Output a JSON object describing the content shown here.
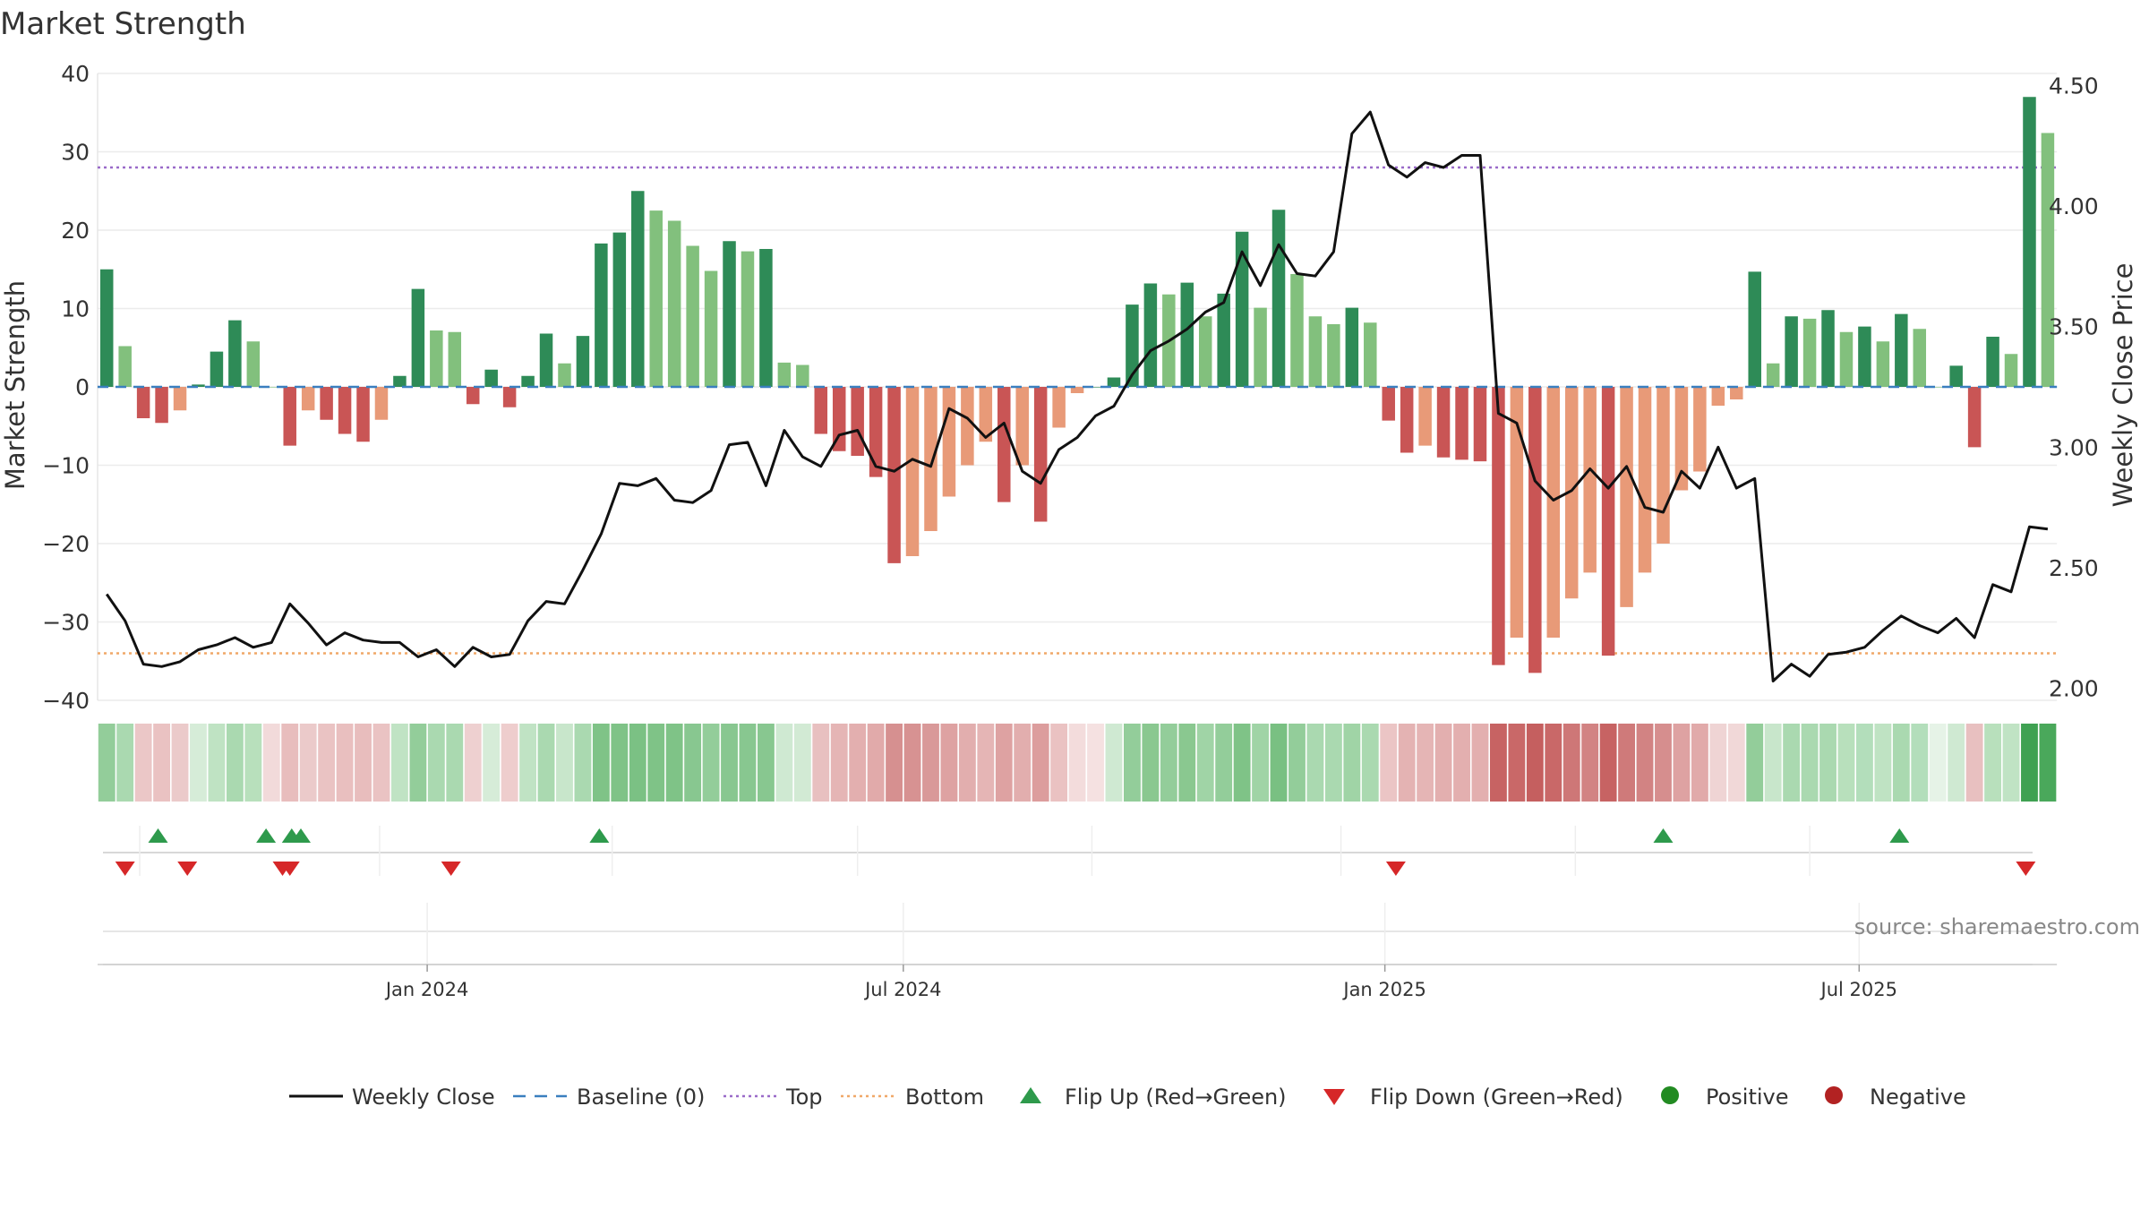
{
  "chart_data": {
    "type": "bar",
    "title": "Market Strength",
    "ylabel_left": "Market Strength",
    "ylabel_right": "Weekly Close Price",
    "ylim_left": [
      -40,
      40
    ],
    "ylim_right": [
      1.95,
      4.55
    ],
    "left_ticks": [
      40,
      30,
      20,
      10,
      0,
      -10,
      -20,
      -30,
      -40
    ],
    "left_tick_labels": [
      "40",
      "30",
      "20",
      "10",
      "0",
      "−10",
      "−20",
      "−30",
      "−40"
    ],
    "right_ticks": [
      4.5,
      4.0,
      3.5,
      3.0,
      2.5,
      2.0
    ],
    "right_tick_labels": [
      "4.50",
      "4.00",
      "3.50",
      "3.00",
      "2.50",
      "2.00"
    ],
    "thresholds": {
      "top": 28,
      "bottom": -34,
      "baseline": 0
    },
    "date_ticks": [
      {
        "week": 17.5,
        "label": "Jan 2024"
      },
      {
        "week": 43.5,
        "label": "Jul 2024"
      },
      {
        "week": 69.8,
        "label": "Jan 2025"
      },
      {
        "week": 95.7,
        "label": "Jul 2025"
      }
    ],
    "strength": [
      15,
      5.2,
      -4,
      -4.6,
      -3,
      0.3,
      4.5,
      8.5,
      5.8,
      0,
      -7.5,
      -3,
      -4.2,
      -6,
      -7,
      -4.2,
      1.4,
      12.5,
      7.2,
      7,
      -2.2,
      2.2,
      -2.6,
      1.4,
      6.8,
      3,
      6.5,
      18.3,
      19.7,
      25,
      22.5,
      21.2,
      18,
      14.8,
      18.6,
      17.3,
      17.6,
      3.1,
      2.8,
      -6,
      -8.2,
      -8.8,
      -11.5,
      -22.5,
      -21.6,
      -18.4,
      -14,
      -10,
      -7,
      -14.7,
      -10,
      -17.2,
      -5.2,
      -0.8,
      0,
      1.2,
      10.5,
      13.2,
      11.8,
      13.3,
      9,
      11.9,
      19.8,
      10.1,
      22.6,
      14.4,
      9,
      8,
      10.1,
      8.2,
      -4.3,
      -8.4,
      -7.5,
      -9,
      -9.3,
      -9.5,
      -35.5,
      -32,
      -36.5,
      -32,
      -27,
      -23.7,
      -34.3,
      -28.1,
      -23.7,
      -20,
      -13.2,
      -10.8,
      -2.4,
      -1.6,
      14.7,
      3,
      9,
      8.7,
      9.8,
      7,
      7.7,
      5.8,
      9.3,
      7.4,
      0,
      2.7,
      -7.7,
      6.4,
      4.2,
      37,
      32.4
    ],
    "weekly_close": [
      2.39,
      2.28,
      2.1,
      2.09,
      2.11,
      2.16,
      2.18,
      2.21,
      2.17,
      2.19,
      2.35,
      2.27,
      2.18,
      2.23,
      2.2,
      2.19,
      2.19,
      2.13,
      2.16,
      2.09,
      2.17,
      2.13,
      2.14,
      2.28,
      2.36,
      2.35,
      2.49,
      2.64,
      2.85,
      2.84,
      2.87,
      2.78,
      2.77,
      2.82,
      3.01,
      3.02,
      2.84,
      3.07,
      2.96,
      2.92,
      3.05,
      3.07,
      2.92,
      2.9,
      2.95,
      2.92,
      3.16,
      3.12,
      3.04,
      3.1,
      2.9,
      2.85,
      2.99,
      3.04,
      3.13,
      3.17,
      3.3,
      3.4,
      3.44,
      3.49,
      3.56,
      3.6,
      3.81,
      3.67,
      3.84,
      3.72,
      3.71,
      3.81,
      4.3,
      4.39,
      4.17,
      4.12,
      4.18,
      4.16,
      4.21,
      4.21,
      3.14,
      3.1,
      2.86,
      2.78,
      2.82,
      2.91,
      2.83,
      2.92,
      2.75,
      2.73,
      2.9,
      2.83,
      3.0,
      2.83,
      2.87,
      2.03,
      2.1,
      2.05,
      2.14,
      2.15,
      2.17,
      2.24,
      2.3,
      2.26,
      2.23,
      2.29,
      2.21,
      2.43,
      2.4,
      2.67,
      2.66
    ],
    "heat_colors": [
      "#93cd9a",
      "#aad9b0",
      "#ebc7c7",
      "#eac2c2",
      "#ebcaca",
      "#d6ecd8",
      "#bfe3c3",
      "#aad9b0",
      "#b8e0bc",
      "#f2dada",
      "#e8bdbd",
      "#ebcaca",
      "#eac3c3",
      "#e9bfbf",
      "#e8bdbd",
      "#eac3c3",
      "#c0e3c4",
      "#93cd9a",
      "#aad9b0",
      "#aad9b0",
      "#eed0d0",
      "#d6ecd8",
      "#eecdcd",
      "#c0e3c4",
      "#aad9b0",
      "#c8e6cb",
      "#aad9b0",
      "#7fc387",
      "#7fc387",
      "#7bc184",
      "#7fc387",
      "#7fc387",
      "#88c790",
      "#93cd9a",
      "#88c790",
      "#88c790",
      "#88c790",
      "#cfe9d2",
      "#d2ead4",
      "#e8c0c0",
      "#e5b5b5",
      "#e3afaf",
      "#e1aaaa",
      "#d69090",
      "#d79292",
      "#d99999",
      "#dea2a2",
      "#e2aeae",
      "#e5b5b5",
      "#dea2a2",
      "#e2aeae",
      "#dc9d9d",
      "#eac2c2",
      "#f3dcdc",
      "#f5e1e1",
      "#cfe9d2",
      "#93cd9a",
      "#8ac890",
      "#93cd9a",
      "#8ac890",
      "#a0d4a6",
      "#93cd9a",
      "#7fc387",
      "#a0d4a6",
      "#79c082",
      "#93cd9a",
      "#aad9b0",
      "#aad9b0",
      "#a0d4a6",
      "#aad9b0",
      "#ebc5c5",
      "#e4b3b3",
      "#e5b5b5",
      "#e3afaf",
      "#e3afaf",
      "#e3afaf",
      "#c76363",
      "#c96868",
      "#c55f5f",
      "#c96868",
      "#ce7777",
      "#d28383",
      "#c76363",
      "#cf7a7a",
      "#d28383",
      "#d68e8e",
      "#dea2a2",
      "#e1aaaa",
      "#efd4d4",
      "#f1d8d8",
      "#93cd9a",
      "#c8e6cb",
      "#aad9b0",
      "#aad9b0",
      "#aad9b0",
      "#b8e0bc",
      "#b3debb",
      "#bfe3c3",
      "#aad9b0",
      "#b3debb",
      "#e6f3e7",
      "#cfe9d2",
      "#e8c0c0",
      "#b8e0bc",
      "#c0e3c4",
      "#3fa152",
      "#4aa85b"
    ],
    "flip_up_weeks": [
      2.8,
      8.7,
      10.1,
      10.6,
      26.9,
      85.0,
      97.9
    ],
    "flip_down_weeks": [
      1.0,
      4.4,
      9.6,
      10.0,
      18.8,
      70.4,
      104.8
    ],
    "source_text": "source: sharemaestro.com",
    "colors": {
      "pos_strong": "#2e8b57",
      "pos_light": "#82c07d",
      "neg_strong": "#c95555",
      "neg_light": "#e89a78",
      "line": "#111111",
      "baseline": "#3a7fbf",
      "top": "#9a6bc9",
      "bottom": "#f0a868",
      "flip_up": "#2e9a4c",
      "flip_down": "#d62728",
      "positive_dot": "#228b22",
      "negative_dot": "#b22222"
    },
    "legend": [
      {
        "label": "Weekly Close",
        "kind": "line"
      },
      {
        "label": "Baseline (0)",
        "kind": "dash"
      },
      {
        "label": "Top",
        "kind": "dot-purple"
      },
      {
        "label": "Bottom",
        "kind": "dot-orange"
      },
      {
        "label": "Flip Up (Red→Green)",
        "kind": "tri-up"
      },
      {
        "label": "Flip Down (Green→Red)",
        "kind": "tri-down"
      },
      {
        "label": "Positive",
        "kind": "circle-pos"
      },
      {
        "label": "Negative",
        "kind": "circle-neg"
      }
    ]
  }
}
